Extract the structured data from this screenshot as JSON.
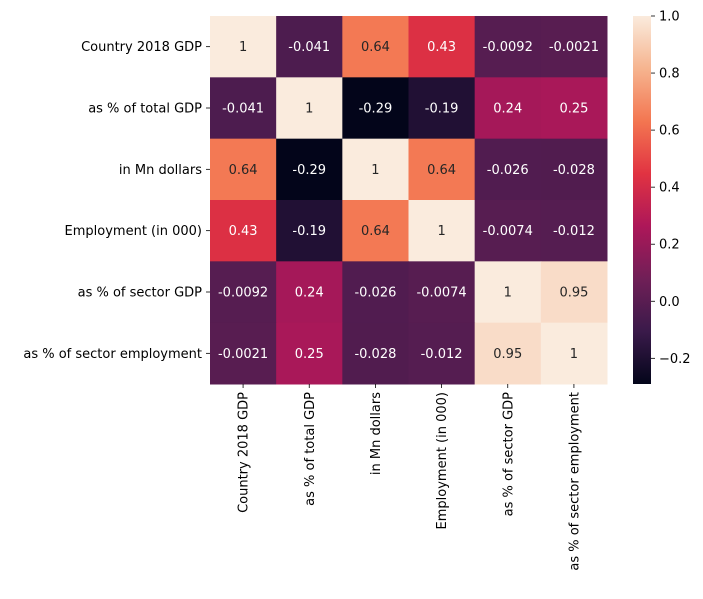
{
  "chart_data": {
    "type": "heatmap",
    "title": "",
    "xlabel": "",
    "ylabel": "",
    "row_labels": [
      "Country 2018 GDP",
      "as % of total GDP",
      "in Mn dollars ",
      "Employment (in 000)",
      "as % of sector GDP",
      "as % of sector employment"
    ],
    "col_labels": [
      "Country 2018 GDP",
      "as % of total GDP",
      "in Mn dollars",
      "Employment (in 000)",
      "as % of sector GDP",
      "as % of sector employment"
    ],
    "values": [
      [
        1,
        -0.041,
        0.64,
        0.43,
        -0.0092,
        -0.0021
      ],
      [
        -0.041,
        1,
        -0.29,
        -0.19,
        0.24,
        0.25
      ],
      [
        0.64,
        -0.29,
        1,
        0.64,
        -0.026,
        -0.028
      ],
      [
        0.43,
        -0.19,
        0.64,
        1,
        -0.0074,
        -0.012
      ],
      [
        -0.0092,
        0.24,
        -0.026,
        -0.0074,
        1,
        0.95
      ],
      [
        -0.0021,
        0.25,
        -0.028,
        -0.012,
        0.95,
        1
      ]
    ],
    "value_labels": [
      [
        "1",
        "-0.041",
        "0.64",
        "0.43",
        "-0.0092",
        "-0.0021"
      ],
      [
        "-0.041",
        "1",
        "-0.29",
        "-0.19",
        "0.24",
        "0.25"
      ],
      [
        "0.64",
        "-0.29",
        "1",
        "0.64",
        "-0.026",
        "-0.028"
      ],
      [
        "0.43",
        "-0.19",
        "0.64",
        "1",
        "-0.0074",
        "-0.012"
      ],
      [
        "-0.0092",
        "0.24",
        "-0.026",
        "-0.0074",
        "1",
        "0.95"
      ],
      [
        "-0.0021",
        "0.25",
        "-0.028",
        "-0.012",
        "0.95",
        "1"
      ]
    ],
    "colorbar": {
      "vmin": -0.29,
      "vmax": 1,
      "ticks": [
        -0.2,
        0.0,
        0.2,
        0.4,
        0.6,
        0.8,
        1.0
      ],
      "tick_labels": [
        "−0.2",
        "0.0",
        "0.2",
        "0.4",
        "0.6",
        "0.8",
        "1.0"
      ],
      "colormap": "rocket",
      "colormap_stops": [
        "#03051a",
        "#3a1a4a",
        "#701f57",
        "#ad1759",
        "#e13342",
        "#f37651",
        "#f6b48f",
        "#faebdd"
      ]
    },
    "annotation_light_color": "#ffffff",
    "annotation_dark_color": "#262626"
  }
}
